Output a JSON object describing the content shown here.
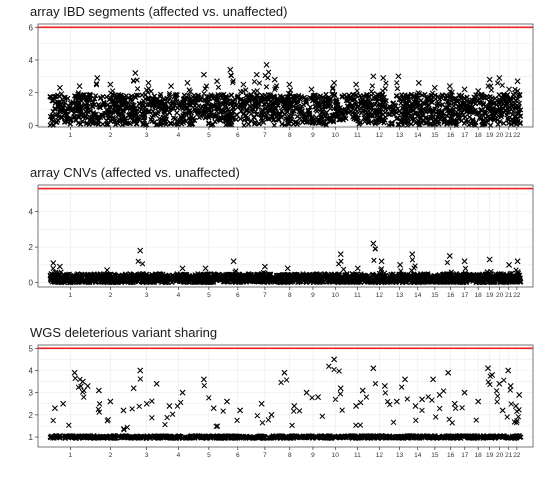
{
  "colors": {
    "reference_line": "#ee2222",
    "points": "#000000",
    "grid": "#ebebeb",
    "panel_border": "#555555"
  },
  "chromosomes": [
    "1",
    "2",
    "3",
    "4",
    "5",
    "6",
    "7",
    "8",
    "9",
    "10",
    "11",
    "12",
    "13",
    "14",
    "15",
    "16",
    "17",
    "18",
    "19",
    "20",
    "21",
    "22"
  ],
  "chromosome_lengths_mb": [
    248,
    242,
    198,
    190,
    181,
    171,
    159,
    145,
    138,
    134,
    135,
    133,
    114,
    107,
    102,
    90,
    83,
    80,
    59,
    64,
    47,
    51
  ],
  "chart_data": [
    {
      "type": "scatter",
      "title": "array IBD segments (affected vs. unaffected)",
      "xlabel": "",
      "ylabel": "",
      "ylim": [
        -0.1,
        6.2
      ],
      "yticks": [
        "0",
        "2",
        "4",
        "6"
      ],
      "reference_line": 6.0,
      "grid": true,
      "baseline": {
        "min": 0.0,
        "max": 1.9,
        "description_free": true
      },
      "peaks": [
        {
          "chr": "1",
          "pos_mb": 60,
          "value": 2.3
        },
        {
          "chr": "1",
          "pos_mb": 180,
          "value": 2.4
        },
        {
          "chr": "2",
          "pos_mb": 40,
          "value": 2.9
        },
        {
          "chr": "2",
          "pos_mb": 120,
          "value": 2.5
        },
        {
          "chr": "3",
          "pos_mb": 30,
          "value": 3.2
        },
        {
          "chr": "3",
          "pos_mb": 110,
          "value": 2.6
        },
        {
          "chr": "4",
          "pos_mb": 50,
          "value": 2.4
        },
        {
          "chr": "4",
          "pos_mb": 150,
          "value": 2.6
        },
        {
          "chr": "5",
          "pos_mb": 60,
          "value": 3.1
        },
        {
          "chr": "5",
          "pos_mb": 140,
          "value": 2.7
        },
        {
          "chr": "6",
          "pos_mb": 40,
          "value": 3.4
        },
        {
          "chr": "6",
          "pos_mb": 120,
          "value": 2.5
        },
        {
          "chr": "7",
          "pos_mb": 30,
          "value": 3.1
        },
        {
          "chr": "7",
          "pos_mb": 90,
          "value": 3.7
        },
        {
          "chr": "7",
          "pos_mb": 140,
          "value": 2.8
        },
        {
          "chr": "8",
          "pos_mb": 70,
          "value": 2.5
        },
        {
          "chr": "9",
          "pos_mb": 60,
          "value": 2.2
        },
        {
          "chr": "10",
          "pos_mb": 60,
          "value": 2.6
        },
        {
          "chr": "11",
          "pos_mb": 60,
          "value": 2.5
        },
        {
          "chr": "12",
          "pos_mb": 30,
          "value": 3.0
        },
        {
          "chr": "12",
          "pos_mb": 90,
          "value": 2.9
        },
        {
          "chr": "13",
          "pos_mb": 50,
          "value": 3.0
        },
        {
          "chr": "14",
          "pos_mb": 60,
          "value": 2.6
        },
        {
          "chr": "15",
          "pos_mb": 50,
          "value": 2.3
        },
        {
          "chr": "16",
          "pos_mb": 40,
          "value": 2.4
        },
        {
          "chr": "17",
          "pos_mb": 40,
          "value": 2.2
        },
        {
          "chr": "18",
          "pos_mb": 40,
          "value": 2.1
        },
        {
          "chr": "19",
          "pos_mb": 30,
          "value": 2.8
        },
        {
          "chr": "20",
          "pos_mb": 30,
          "value": 2.9
        },
        {
          "chr": "21",
          "pos_mb": 25,
          "value": 2.2
        },
        {
          "chr": "22",
          "pos_mb": 30,
          "value": 2.7
        }
      ]
    },
    {
      "type": "scatter",
      "title": "array CNVs (affected vs. unaffected)",
      "xlabel": "",
      "ylabel": "",
      "ylim": [
        -0.25,
        5.5
      ],
      "yticks": [
        "0",
        "2",
        "4"
      ],
      "reference_line": 5.3,
      "grid": true,
      "baseline": {
        "min": 0.0,
        "max": 0.5
      },
      "peaks": [
        {
          "chr": "1",
          "pos_mb": 20,
          "value": 1.1
        },
        {
          "chr": "1",
          "pos_mb": 60,
          "value": 0.9
        },
        {
          "chr": "2",
          "pos_mb": 100,
          "value": 0.7
        },
        {
          "chr": "3",
          "pos_mb": 60,
          "value": 1.8
        },
        {
          "chr": "4",
          "pos_mb": 120,
          "value": 0.8
        },
        {
          "chr": "5",
          "pos_mb": 70,
          "value": 0.8
        },
        {
          "chr": "6",
          "pos_mb": 60,
          "value": 1.2
        },
        {
          "chr": "7",
          "pos_mb": 80,
          "value": 0.9
        },
        {
          "chr": "8",
          "pos_mb": 60,
          "value": 0.8
        },
        {
          "chr": "10",
          "pos_mb": 100,
          "value": 1.6
        },
        {
          "chr": "11",
          "pos_mb": 70,
          "value": 0.8
        },
        {
          "chr": "12",
          "pos_mb": 30,
          "value": 2.2
        },
        {
          "chr": "12",
          "pos_mb": 80,
          "value": 1.2
        },
        {
          "chr": "13",
          "pos_mb": 60,
          "value": 1.0
        },
        {
          "chr": "14",
          "pos_mb": 20,
          "value": 1.6
        },
        {
          "chr": "16",
          "pos_mb": 40,
          "value": 1.5
        },
        {
          "chr": "17",
          "pos_mb": 40,
          "value": 1.2
        },
        {
          "chr": "19",
          "pos_mb": 30,
          "value": 1.3
        },
        {
          "chr": "21",
          "pos_mb": 25,
          "value": 1.0
        },
        {
          "chr": "22",
          "pos_mb": 30,
          "value": 1.2
        }
      ]
    },
    {
      "type": "scatter",
      "title": "WGS deleterious variant sharing",
      "xlabel": "",
      "ylabel": "",
      "ylim": [
        0.55,
        5.15
      ],
      "yticks": [
        "1",
        "2",
        "3",
        "4",
        "5"
      ],
      "reference_line": 5.0,
      "grid": true,
      "baseline": {
        "min": 0.85,
        "max": 1.15
      },
      "points": [
        {
          "chr": "1",
          "pos_mb": 30,
          "value": 2.3
        },
        {
          "chr": "1",
          "pos_mb": 80,
          "value": 2.5
        },
        {
          "chr": "1",
          "pos_mb": 150,
          "value": 3.9
        },
        {
          "chr": "1",
          "pos_mb": 200,
          "value": 3.5
        },
        {
          "chr": "1",
          "pos_mb": 230,
          "value": 3.3
        },
        {
          "chr": "2",
          "pos_mb": 50,
          "value": 3.1
        },
        {
          "chr": "2",
          "pos_mb": 120,
          "value": 2.6
        },
        {
          "chr": "2",
          "pos_mb": 200,
          "value": 2.2
        },
        {
          "chr": "3",
          "pos_mb": 20,
          "value": 3.2
        },
        {
          "chr": "3",
          "pos_mb": 60,
          "value": 4.0
        },
        {
          "chr": "3",
          "pos_mb": 100,
          "value": 2.5
        },
        {
          "chr": "3",
          "pos_mb": 160,
          "value": 3.4
        },
        {
          "chr": "4",
          "pos_mb": 40,
          "value": 2.4
        },
        {
          "chr": "4",
          "pos_mb": 120,
          "value": 3.0
        },
        {
          "chr": "5",
          "pos_mb": 60,
          "value": 3.6
        },
        {
          "chr": "5",
          "pos_mb": 120,
          "value": 2.3
        },
        {
          "chr": "6",
          "pos_mb": 20,
          "value": 2.6
        },
        {
          "chr": "6",
          "pos_mb": 100,
          "value": 2.2
        },
        {
          "chr": "7",
          "pos_mb": 60,
          "value": 2.5
        },
        {
          "chr": "7",
          "pos_mb": 120,
          "value": 2.0
        },
        {
          "chr": "8",
          "pos_mb": 40,
          "value": 3.9
        },
        {
          "chr": "8",
          "pos_mb": 100,
          "value": 2.4
        },
        {
          "chr": "9",
          "pos_mb": 30,
          "value": 3.0
        },
        {
          "chr": "9",
          "pos_mb": 100,
          "value": 2.8
        },
        {
          "chr": "10",
          "pos_mb": 60,
          "value": 4.5
        },
        {
          "chr": "10",
          "pos_mb": 100,
          "value": 3.2
        },
        {
          "chr": "11",
          "pos_mb": 60,
          "value": 2.4
        },
        {
          "chr": "11",
          "pos_mb": 100,
          "value": 3.1
        },
        {
          "chr": "12",
          "pos_mb": 30,
          "value": 4.1
        },
        {
          "chr": "12",
          "pos_mb": 100,
          "value": 3.3
        },
        {
          "chr": "13",
          "pos_mb": 40,
          "value": 2.6
        },
        {
          "chr": "13",
          "pos_mb": 90,
          "value": 3.6
        },
        {
          "chr": "14",
          "pos_mb": 40,
          "value": 2.4
        },
        {
          "chr": "14",
          "pos_mb": 80,
          "value": 2.7
        },
        {
          "chr": "15",
          "pos_mb": 40,
          "value": 3.6
        },
        {
          "chr": "15",
          "pos_mb": 80,
          "value": 2.9
        },
        {
          "chr": "16",
          "pos_mb": 30,
          "value": 3.9
        },
        {
          "chr": "16",
          "pos_mb": 70,
          "value": 2.5
        },
        {
          "chr": "17",
          "pos_mb": 40,
          "value": 3.0
        },
        {
          "chr": "18",
          "pos_mb": 40,
          "value": 2.6
        },
        {
          "chr": "19",
          "pos_mb": 20,
          "value": 4.1
        },
        {
          "chr": "19",
          "pos_mb": 45,
          "value": 3.8
        },
        {
          "chr": "20",
          "pos_mb": 30,
          "value": 3.4
        },
        {
          "chr": "20",
          "pos_mb": 50,
          "value": 2.2
        },
        {
          "chr": "21",
          "pos_mb": 20,
          "value": 4.0
        },
        {
          "chr": "21",
          "pos_mb": 35,
          "value": 3.3
        },
        {
          "chr": "22",
          "pos_mb": 20,
          "value": 2.4
        },
        {
          "chr": "22",
          "pos_mb": 40,
          "value": 2.9
        }
      ]
    }
  ]
}
